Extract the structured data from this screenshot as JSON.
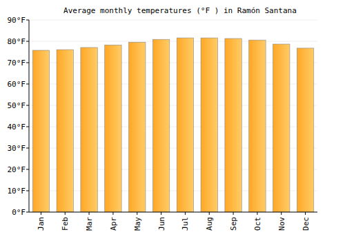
{
  "chart_data": {
    "type": "bar",
    "title": "Average monthly temperatures (°F ) in Ramón Santana",
    "categories": [
      "Jan",
      "Feb",
      "Mar",
      "Apr",
      "May",
      "Jun",
      "Jul",
      "Aug",
      "Sep",
      "Oct",
      "Nov",
      "Dec"
    ],
    "values": [
      75.8,
      76.1,
      77.1,
      78.3,
      79.6,
      80.9,
      81.6,
      81.6,
      81.3,
      80.6,
      78.7,
      76.8
    ],
    "color": "#ffa726",
    "ylim": [
      0,
      90
    ],
    "yticks": [
      {
        "value": 0,
        "label": "0°F"
      },
      {
        "value": 10,
        "label": "10°F"
      },
      {
        "value": 20,
        "label": "20°F"
      },
      {
        "value": 30,
        "label": "30°F"
      },
      {
        "value": 40,
        "label": "40°F"
      },
      {
        "value": 50,
        "label": "50°F"
      },
      {
        "value": 60,
        "label": "60°F"
      },
      {
        "value": 70,
        "label": "70°F"
      },
      {
        "value": 80,
        "label": "80°F"
      },
      {
        "value": 90,
        "label": "90°F"
      }
    ],
    "grid": true
  }
}
